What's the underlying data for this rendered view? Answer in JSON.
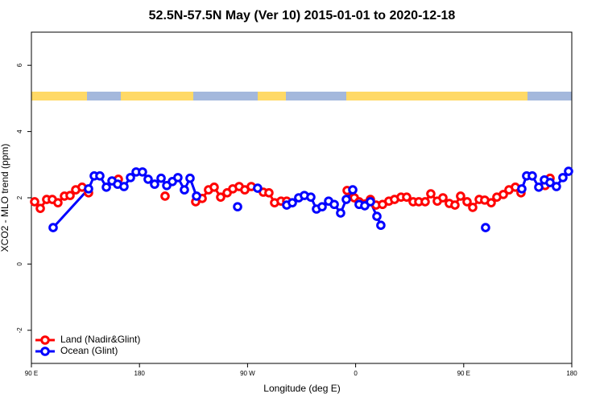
{
  "chart_data": {
    "type": "line",
    "title": "52.5N-57.5N May (Ver 10)   2015-01-01 to 2020-12-18",
    "x_label": "Longitude (deg E)",
    "y_label": "XCO2 - MLO trend (ppm)",
    "xlim": [
      90,
      540
    ],
    "xticks": [
      {
        "value": 90,
        "label": "90 E"
      },
      180,
      {
        "value": 270,
        "label": "90 W"
      },
      {
        "value": 360,
        "label": "0"
      },
      {
        "value": 450,
        "label": "90 E"
      },
      {
        "value": 540,
        "label": "180"
      }
    ],
    "ylim": [
      -3,
      7
    ],
    "yticks": [
      -2,
      0,
      2,
      4,
      6
    ],
    "legend": "bottom-left",
    "series": [
      {
        "name": "Land (Nadir&Glint)",
        "color": "#ff0000",
        "x": [
          92.7,
          97.4,
          102.7,
          107.4,
          112.1,
          117.5,
          122.2,
          126.9,
          132.2,
          137.6,
          null,
          162.4,
          null,
          201.3,
          null,
          226.8,
          232.2,
          237.5,
          242.2,
          247.6,
          253.0,
          257.7,
          263.0,
          267.7,
          273.1,
          283.1,
          287.8,
          292.5,
          297.9,
          302.6,
          null,
          352.9,
          358.9,
          362.9,
          372.3,
          377.0,
          382.4,
          387.7,
          392.4,
          397.8,
          402.5,
          407.9,
          412.6,
          417.9,
          422.6,
          428.0,
          432.7,
          438.0,
          442.7,
          447.4,
          452.8,
          457.5,
          462.9,
          467.5,
          472.9,
          477.6,
          483.0,
          487.7,
          493.0,
          497.7,
          null,
          517.8,
          521.9
        ],
        "values": [
          1.88,
          1.68,
          1.95,
          1.95,
          1.85,
          2.05,
          2.07,
          2.24,
          2.32,
          2.15,
          null,
          2.56,
          null,
          2.05,
          null,
          1.88,
          1.98,
          2.24,
          2.32,
          2.02,
          2.15,
          2.27,
          2.34,
          2.24,
          2.34,
          2.17,
          2.15,
          1.85,
          1.9,
          1.9,
          null,
          2.22,
          2.0,
          1.88,
          1.95,
          1.78,
          1.8,
          1.9,
          1.95,
          2.02,
          2.02,
          1.88,
          1.88,
          1.88,
          2.12,
          1.9,
          2.0,
          1.83,
          1.78,
          2.05,
          1.88,
          1.71,
          1.95,
          1.93,
          1.85,
          2.02,
          2.1,
          2.24,
          2.32,
          2.15,
          null,
          2.37,
          2.59
        ]
      },
      {
        "name": "Ocean (Glint)",
        "color": "#0000ff",
        "x": [
          108.1,
          137.6,
          142.3,
          147.0,
          152.4,
          157.1,
          161.8,
          167.1,
          172.5,
          177.2,
          182.5,
          187.2,
          192.6,
          198.0,
          202.7,
          207.4,
          212.0,
          217.4,
          222.1,
          227.5,
          null,
          261.7,
          null,
          278.4,
          null,
          302.6,
          307.3,
          312.6,
          317.3,
          322.7,
          327.4,
          332.1,
          337.5,
          342.2,
          347.5,
          352.2,
          357.6,
          362.9,
          367.6,
          372.3,
          377.7,
          381.0,
          null,
          468.2,
          null,
          498.4,
          502.4,
          507.1,
          512.5,
          517.2,
          521.9,
          527.2,
          532.6,
          537.3
        ],
        "values": [
          1.1,
          2.27,
          2.66,
          2.66,
          2.32,
          2.51,
          2.41,
          2.34,
          2.61,
          2.78,
          2.78,
          2.56,
          2.41,
          2.59,
          2.37,
          2.49,
          2.61,
          2.24,
          2.59,
          2.05,
          null,
          1.73,
          null,
          2.29,
          null,
          1.78,
          1.85,
          2.0,
          2.07,
          2.02,
          1.66,
          1.73,
          1.9,
          1.8,
          1.54,
          1.95,
          2.24,
          1.8,
          1.76,
          1.88,
          1.44,
          1.17,
          null,
          1.1,
          null,
          2.27,
          2.66,
          2.66,
          2.32,
          2.54,
          2.46,
          2.34,
          2.61,
          2.8
        ]
      }
    ]
  }
}
